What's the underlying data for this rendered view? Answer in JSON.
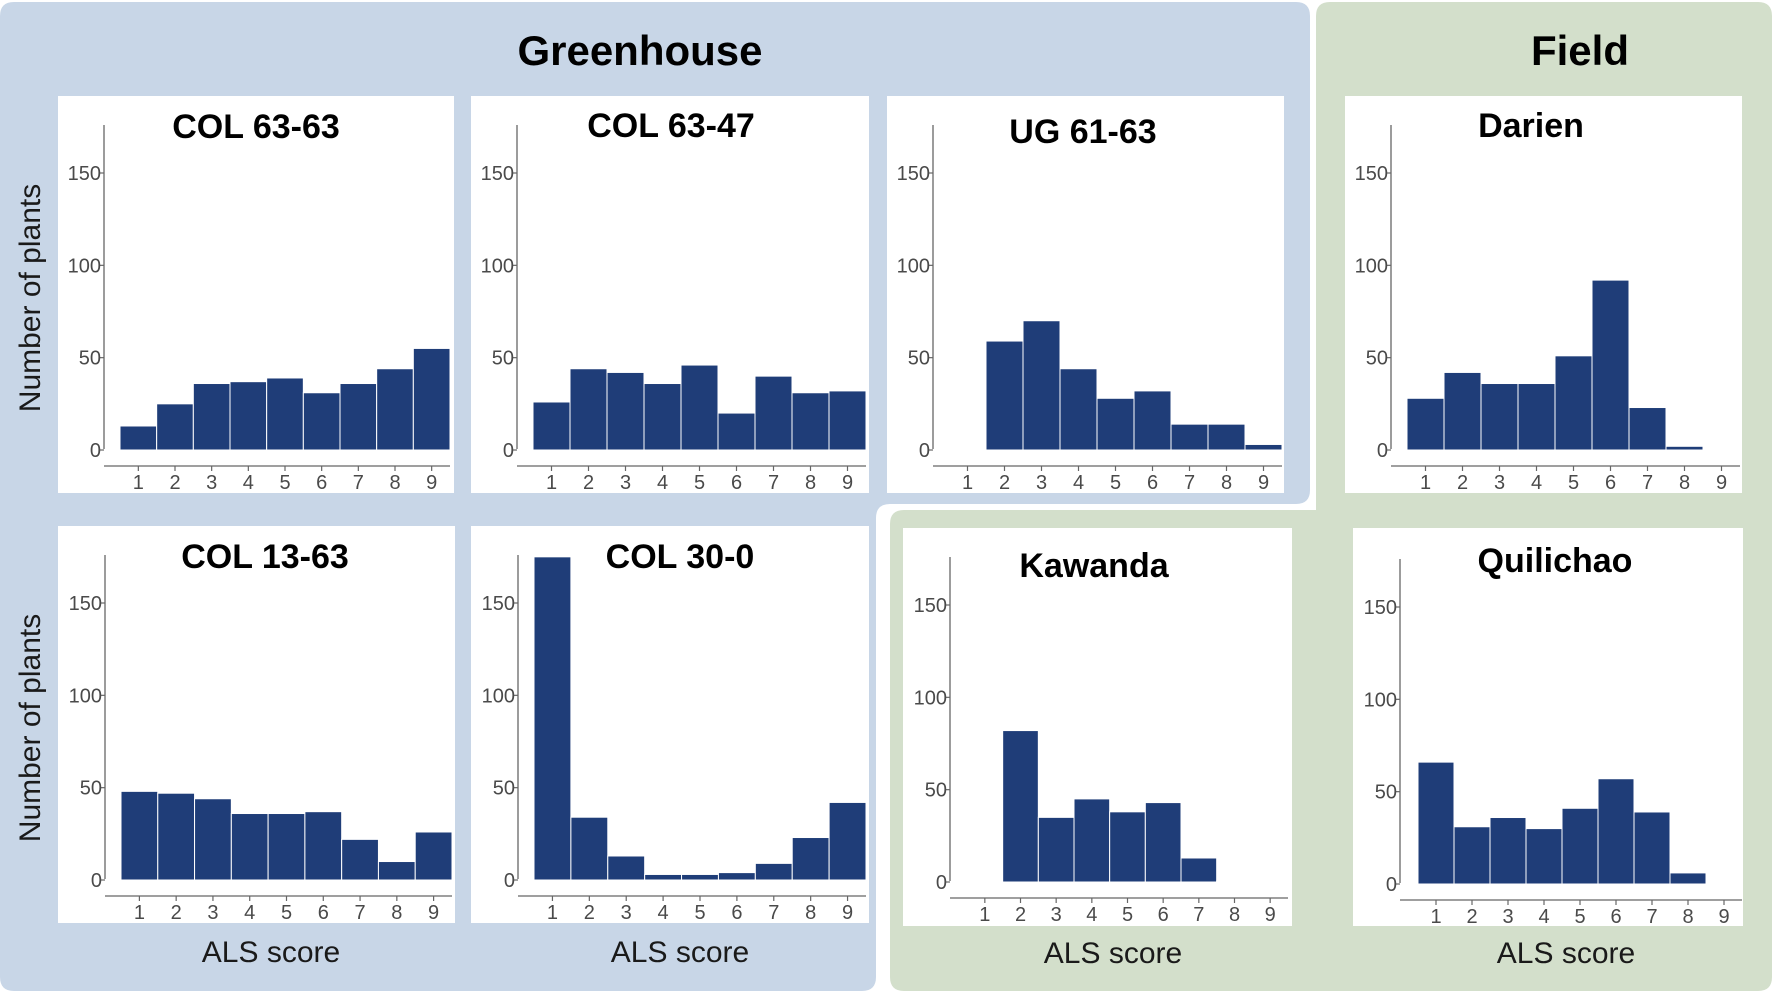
{
  "groups": {
    "greenhouse": "Greenhouse",
    "field": "Field"
  },
  "colors": {
    "bar": "#1f3d78",
    "greenhouse_bg": "#c8d6e7",
    "field_bg": "#d3dfcb",
    "axis": "#666666"
  },
  "axes": {
    "ylabel": "Number of plants",
    "xlabel": "ALS score"
  },
  "chart_data": [
    {
      "type": "bar",
      "group": "Greenhouse",
      "title": "COL 63-63",
      "categories": [
        "1",
        "2",
        "3",
        "4",
        "5",
        "6",
        "7",
        "8",
        "9"
      ],
      "values": [
        13,
        25,
        36,
        37,
        39,
        31,
        36,
        44,
        55
      ],
      "ylim": [
        0,
        180
      ],
      "yticks": [
        0,
        50,
        100,
        150
      ],
      "xlabel": "",
      "ylabel": "Number of plants"
    },
    {
      "type": "bar",
      "group": "Greenhouse",
      "title": "COL 63-47",
      "categories": [
        "1",
        "2",
        "3",
        "4",
        "5",
        "6",
        "7",
        "8",
        "9"
      ],
      "values": [
        26,
        44,
        42,
        36,
        46,
        20,
        40,
        31,
        32
      ],
      "ylim": [
        0,
        180
      ],
      "yticks": [
        0,
        50,
        100,
        150
      ],
      "xlabel": "",
      "ylabel": ""
    },
    {
      "type": "bar",
      "group": "Greenhouse",
      "title": "UG 61-63",
      "categories": [
        "1",
        "2",
        "3",
        "4",
        "5",
        "6",
        "7",
        "8",
        "9"
      ],
      "values": [
        0.5,
        59,
        70,
        44,
        28,
        32,
        14,
        14,
        3
      ],
      "ylim": [
        0,
        180
      ],
      "yticks": [
        0,
        50,
        100,
        150
      ],
      "xlabel": "",
      "ylabel": ""
    },
    {
      "type": "bar",
      "group": "Field",
      "title": "Darien",
      "categories": [
        "1",
        "2",
        "3",
        "4",
        "5",
        "6",
        "7",
        "8",
        "9"
      ],
      "values": [
        28,
        42,
        36,
        36,
        51,
        92,
        23,
        2,
        0
      ],
      "ylim": [
        0,
        180
      ],
      "yticks": [
        0,
        50,
        100,
        150
      ],
      "xlabel": "",
      "ylabel": ""
    },
    {
      "type": "bar",
      "group": "Greenhouse",
      "title": "COL 13-63",
      "categories": [
        "1",
        "2",
        "3",
        "4",
        "5",
        "6",
        "7",
        "8",
        "9"
      ],
      "values": [
        48,
        47,
        44,
        36,
        36,
        37,
        22,
        10,
        26
      ],
      "ylim": [
        0,
        180
      ],
      "yticks": [
        0,
        50,
        100,
        150
      ],
      "xlabel": "ALS score",
      "ylabel": "Number of plants"
    },
    {
      "type": "bar",
      "group": "Greenhouse",
      "title": "COL 30-0",
      "categories": [
        "1",
        "2",
        "3",
        "4",
        "5",
        "6",
        "7",
        "8",
        "9"
      ],
      "values": [
        175,
        34,
        13,
        3,
        3,
        4,
        9,
        23,
        42
      ],
      "ylim": [
        0,
        180
      ],
      "yticks": [
        0,
        50,
        100,
        150
      ],
      "xlabel": "ALS score",
      "ylabel": ""
    },
    {
      "type": "bar",
      "group": "Field",
      "title": "Kawanda",
      "categories": [
        "1",
        "2",
        "3",
        "4",
        "5",
        "6",
        "7",
        "8",
        "9"
      ],
      "values": [
        0,
        82,
        35,
        45,
        38,
        43,
        13,
        0.5,
        0
      ],
      "ylim": [
        0,
        180
      ],
      "yticks": [
        0,
        50,
        100,
        150
      ],
      "xlabel": "ALS score",
      "ylabel": ""
    },
    {
      "type": "bar",
      "group": "Field",
      "title": "Quilichao",
      "categories": [
        "1",
        "2",
        "3",
        "4",
        "5",
        "6",
        "7",
        "8",
        "9"
      ],
      "values": [
        66,
        31,
        36,
        30,
        41,
        57,
        39,
        6,
        0
      ],
      "ylim": [
        0,
        180
      ],
      "yticks": [
        0,
        50,
        100,
        150
      ],
      "xlabel": "ALS score",
      "ylabel": ""
    }
  ]
}
